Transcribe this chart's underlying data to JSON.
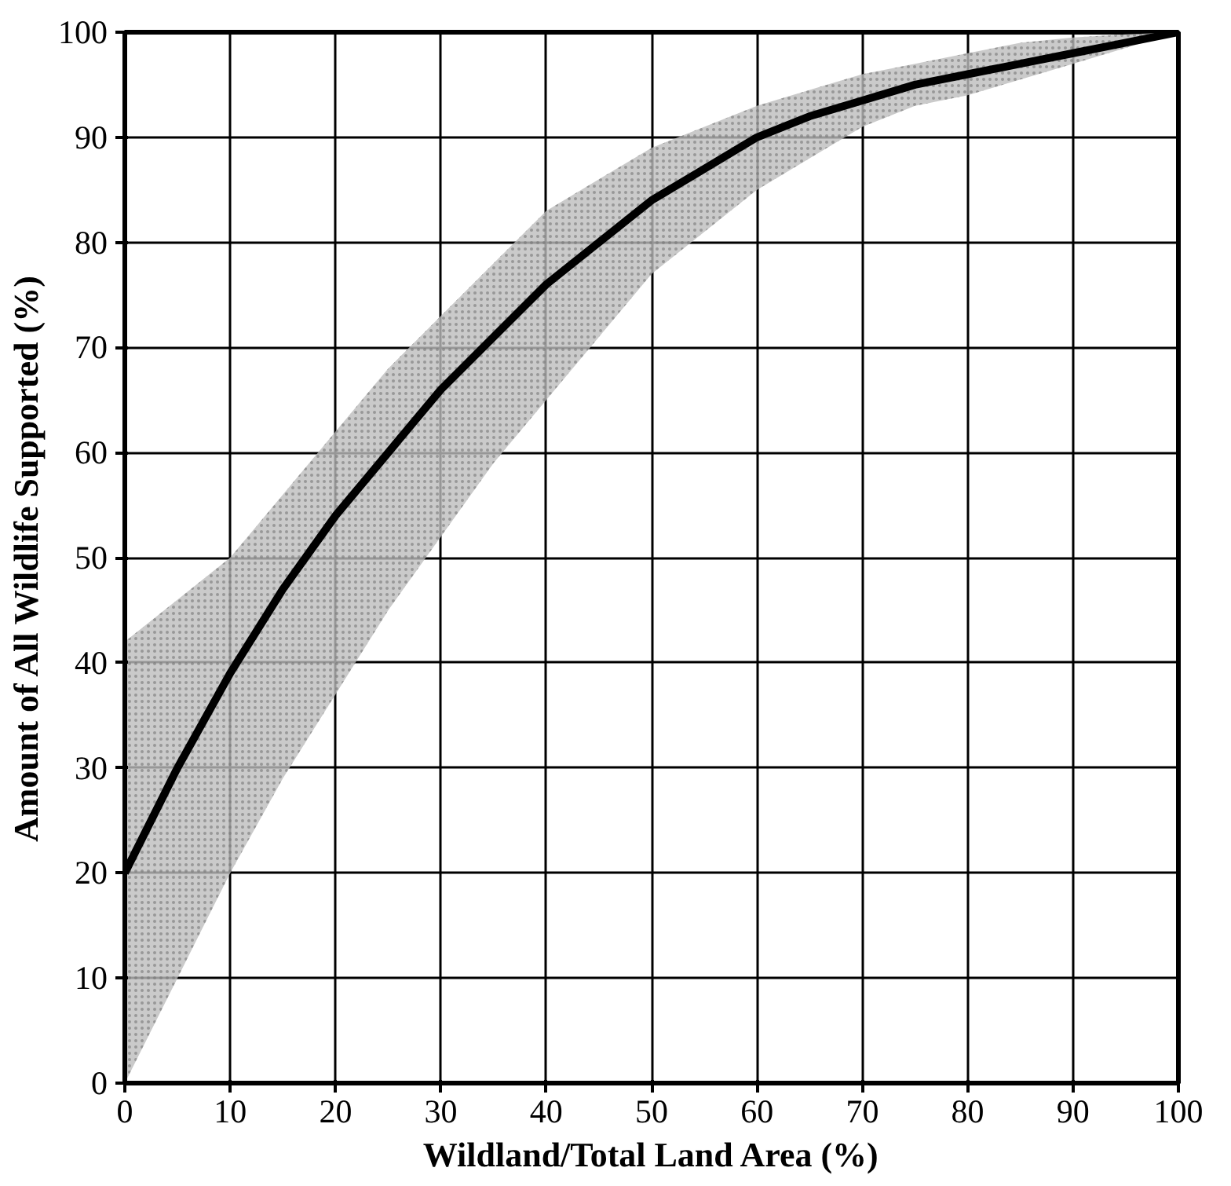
{
  "chart_data": {
    "type": "line",
    "xlabel": "Wildland/Total Land Area (%)",
    "ylabel": "Amount of All Wildlife Supported (%)",
    "x": [
      0,
      5,
      10,
      15,
      20,
      25,
      30,
      35,
      40,
      45,
      50,
      55,
      60,
      65,
      70,
      75,
      80,
      85,
      90,
      95,
      100
    ],
    "series": [
      {
        "color": "#000000",
        "values": [
          20,
          30,
          39,
          47,
          54,
          60,
          66,
          71,
          76,
          80,
          84,
          87,
          90,
          92,
          93.5,
          95,
          96,
          97,
          98,
          99,
          100
        ],
        "lower": [
          0,
          10,
          20,
          29,
          37,
          45,
          52,
          59,
          65,
          71,
          77,
          81,
          85,
          88,
          91,
          93,
          94,
          95.5,
          97,
          98.5,
          100
        ],
        "upper": [
          42,
          46,
          50,
          56,
          62,
          68,
          73,
          78,
          83,
          86,
          89,
          91,
          93,
          94.5,
          96,
          97,
          98,
          99,
          99.5,
          99.8,
          100
        ]
      }
    ],
    "xlim": [
      0,
      100
    ],
    "ylim": [
      0,
      100
    ],
    "xticks": [
      0,
      10,
      20,
      30,
      40,
      50,
      60,
      70,
      80,
      90,
      100
    ],
    "yticks": [
      0,
      10,
      20,
      30,
      40,
      50,
      60,
      70,
      80,
      90,
      100
    ],
    "grid": true,
    "marker": "none",
    "line_style": "solid"
  }
}
